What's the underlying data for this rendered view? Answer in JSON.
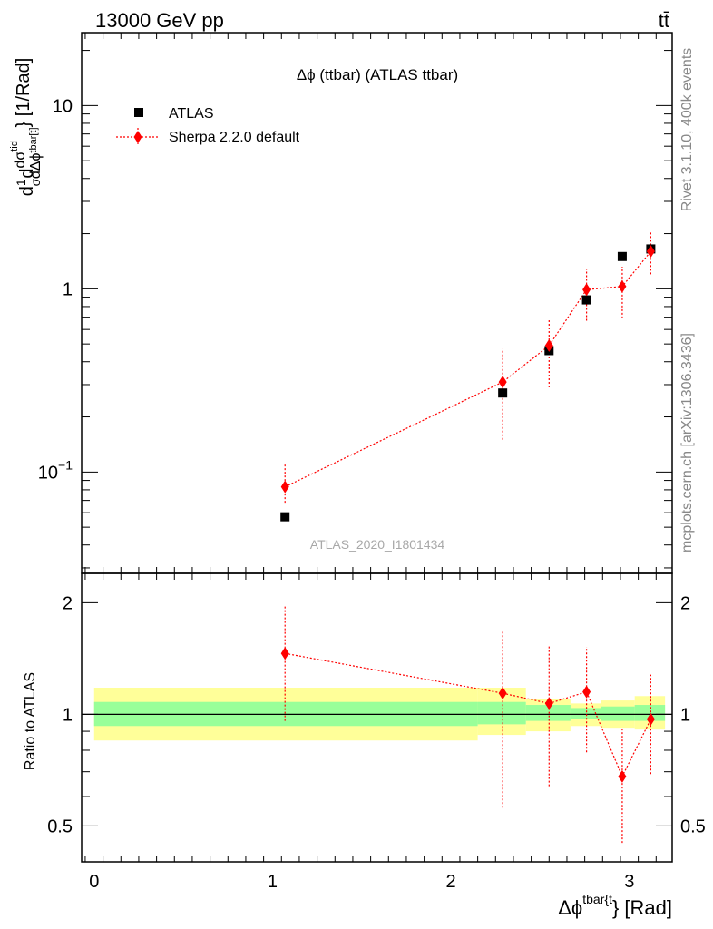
{
  "header": {
    "energy_label": "13000 GeV pp",
    "process_label": "tt̄"
  },
  "side_labels": {
    "rivet": "Rivet 3.1.10,  400k events",
    "source": "mcplots.cern.ch [arXiv:1306.3436]"
  },
  "chart_data": [
    {
      "type": "scatter",
      "title": "Δϕ (ttbar) (ATLAS ttbar)",
      "watermark": "ATLAS_2020_I1801434",
      "ylabel": "d1/σ dσ^{tid}/dΔϕ^{tbar[t]} [1/Rad]",
      "ylabel_parts": {
        "main": "d",
        "frac1_num": "1",
        "frac1_den": "σ",
        "mid": "d",
        "frac2_num": "dσ",
        "frac2_num_sup": "tid",
        "frac2_den": "dΔϕ",
        "frac2_den_sub": "tbar[t]",
        "unit": "} [1/Rad]"
      },
      "y_scale": "log",
      "ylim": [
        0.028,
        25
      ],
      "xlim": [
        -0.07,
        3.24
      ],
      "y_ticks": [
        {
          "value": 0.1,
          "label": "10",
          "sup": "−1"
        },
        {
          "value": 1,
          "label": "1",
          "sup": ""
        },
        {
          "value": 10,
          "label": "10",
          "sup": ""
        }
      ],
      "legend_position": "top-left",
      "series": [
        {
          "name": "ATLAS",
          "marker": "square",
          "color": "#000000",
          "x": [
            1.07,
            2.29,
            2.55,
            2.76,
            2.96,
            3.12
          ],
          "y": [
            0.057,
            0.27,
            0.46,
            0.87,
            1.5,
            1.65
          ]
        },
        {
          "name": "Sherpa 2.2.0 default",
          "marker": "diamond",
          "color": "#ff0000",
          "x": [
            1.07,
            2.29,
            2.55,
            2.76,
            2.96,
            3.12
          ],
          "y": [
            0.083,
            0.31,
            0.49,
            0.99,
            1.03,
            1.6
          ],
          "err_low": [
            0.068,
            0.15,
            0.29,
            0.67,
            0.69,
            1.2
          ],
          "err_high": [
            0.11,
            0.47,
            0.69,
            1.29,
            1.32,
            2.05
          ]
        }
      ]
    },
    {
      "type": "scatter",
      "ylabel": "Ratio to ATLAS",
      "xlabel": "Δϕ",
      "xlabel_sup": "tbar{t",
      "xlabel_suffix": "} [Rad]",
      "y_scale": "log",
      "ylim": [
        0.4,
        2.4
      ],
      "xlim": [
        -0.07,
        3.24
      ],
      "x_ticks": [
        0,
        1,
        2,
        3
      ],
      "y_ticks": [
        0.5,
        1,
        2
      ],
      "bands": [
        {
          "x0": 0.0,
          "x1": 2.15,
          "yellow": [
            0.85,
            1.18
          ],
          "green": [
            0.93,
            1.08
          ]
        },
        {
          "x0": 2.15,
          "x1": 2.42,
          "yellow": [
            0.88,
            1.18
          ],
          "green": [
            0.94,
            1.08
          ]
        },
        {
          "x0": 2.42,
          "x1": 2.67,
          "yellow": [
            0.9,
            1.1
          ],
          "green": [
            0.96,
            1.06
          ]
        },
        {
          "x0": 2.67,
          "x1": 2.84,
          "yellow": [
            0.93,
            1.07
          ],
          "green": [
            0.97,
            1.04
          ]
        },
        {
          "x0": 2.84,
          "x1": 3.03,
          "yellow": [
            0.92,
            1.09
          ],
          "green": [
            0.96,
            1.05
          ]
        },
        {
          "x0": 3.03,
          "x1": 3.2,
          "yellow": [
            0.91,
            1.12
          ],
          "green": [
            0.96,
            1.06
          ]
        }
      ],
      "series": [
        {
          "name": "Sherpa 2.2.0 default",
          "marker": "diamond",
          "color": "#ff0000",
          "x": [
            1.07,
            2.29,
            2.55,
            2.76,
            2.96,
            3.12
          ],
          "y": [
            1.46,
            1.14,
            1.07,
            1.15,
            0.68,
            0.97
          ],
          "err_low": [
            0.96,
            0.56,
            0.64,
            0.79,
            0.45,
            0.69
          ],
          "err_high": [
            1.97,
            1.67,
            1.54,
            1.52,
            0.92,
            1.28
          ]
        }
      ]
    }
  ]
}
